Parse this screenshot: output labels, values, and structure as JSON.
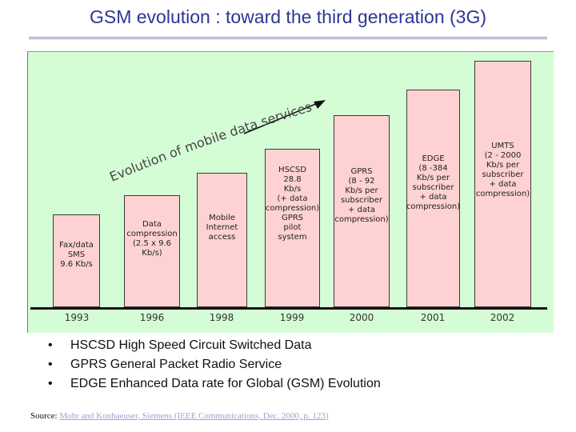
{
  "title": "GSM evolution : toward the third generation (3G)",
  "diagram": {
    "arrow_label": "Evolution of mobile data services",
    "columns": [
      {
        "year": "1993",
        "label": "Fax/data\nSMS\n9.6 Kb/s"
      },
      {
        "year": "1996",
        "label": "Data\ncompression\n(2.5 x 9.6\nKb/s)"
      },
      {
        "year": "1998",
        "label": "Mobile\nInternet\naccess"
      },
      {
        "year": "1999",
        "label": "HSCSD\n28.8\nKb/s\n(+ data\ncompression)\nGPRS\npilot\nsystem"
      },
      {
        "year": "2000",
        "label": "GPRS\n(8 - 92\nKb/s per\nsubscriber\n+ data\ncompression)"
      },
      {
        "year": "2001",
        "label": "EDGE\n(8 -384\nKb/s per\nsubscriber\n+ data\ncompression)"
      },
      {
        "year": "2002",
        "label": "UMTS\n(2 - 2000\nKb/s per\nsubscriber\n+ data\ncompression)"
      }
    ]
  },
  "bullets": [
    "HSCSD High Speed Circuit Switched Data",
    "GPRS General Packet Radio Service",
    "EDGE Enhanced Data rate for Global (GSM) Evolution"
  ],
  "bullet_symbol": "•",
  "source": {
    "prefix": "Source:",
    "text": "Mohr and Konhaeuser, Siemens (IEEE Communications, Dec. 2000, p. 123)"
  }
}
